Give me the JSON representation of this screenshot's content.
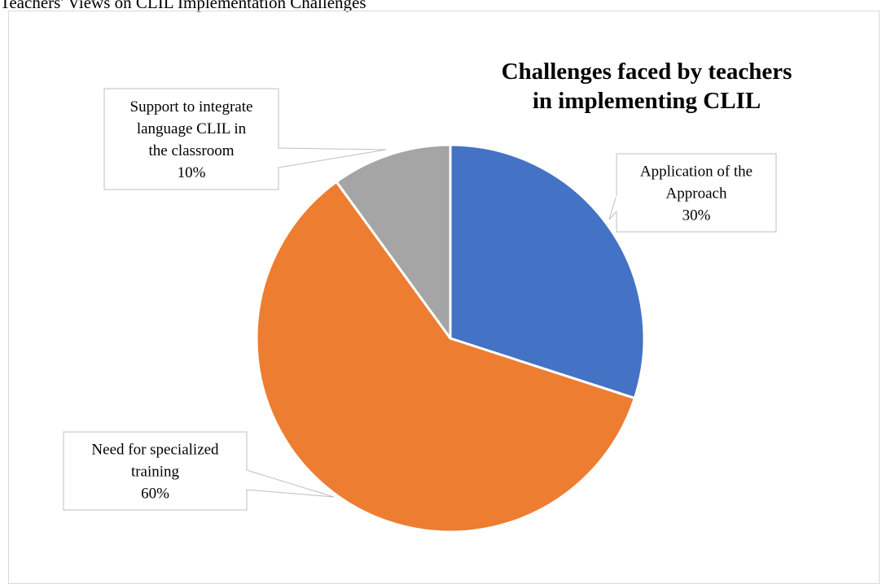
{
  "caption": "Teachers' Views on CLIL Implementation Challenges",
  "chart_data": {
    "type": "pie",
    "title_lines": [
      "Challenges faced by teachers",
      "in implementing CLIL"
    ],
    "slices": [
      {
        "label_lines": [
          "Application of the",
          "Approach"
        ],
        "pct_text": "30%",
        "value": 30,
        "color": "#4472c4"
      },
      {
        "label_lines": [
          "Need for specialized",
          "training"
        ],
        "pct_text": "60%",
        "value": 60,
        "color": "#ed7d31"
      },
      {
        "label_lines": [
          "Support to integrate",
          "language CLIL in",
          "the classroom"
        ],
        "pct_text": "10%",
        "value": 10,
        "color": "#a5a5a5"
      }
    ],
    "legend": "none"
  }
}
